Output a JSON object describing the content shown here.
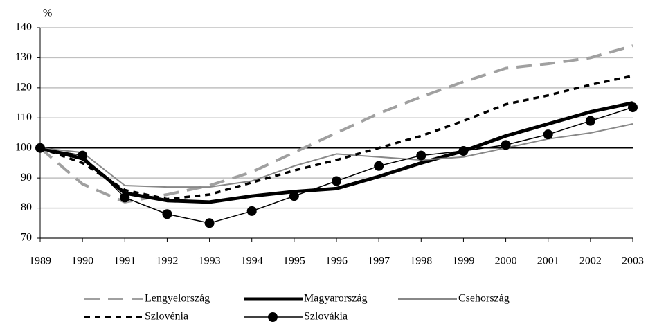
{
  "chart_data": {
    "type": "line",
    "y_label": "%",
    "categories": [
      "1989",
      "1990",
      "1991",
      "1992",
      "1993",
      "1994",
      "1995",
      "1996",
      "1997",
      "1998",
      "1999",
      "2000",
      "2001",
      "2002",
      "2003"
    ],
    "ylim": [
      70,
      140
    ],
    "yticks": [
      70,
      80,
      90,
      100,
      110,
      120,
      130,
      140
    ],
    "grid": true,
    "reference_line": 100,
    "series": [
      {
        "name": "Lengyelország",
        "color": "#a0a0a0",
        "width": 4,
        "dash": "22 12",
        "marker": false,
        "values": [
          100,
          88,
          82,
          84.5,
          87.5,
          92,
          98.5,
          105,
          111.5,
          117,
          122,
          126.5,
          128,
          130,
          134
        ]
      },
      {
        "name": "Magyarország",
        "color": "#000000",
        "width": 5,
        "dash": "",
        "marker": false,
        "values": [
          100,
          96.5,
          85,
          82.5,
          82,
          84,
          85.5,
          86.5,
          90.5,
          95,
          99,
          104,
          108,
          112,
          115
        ]
      },
      {
        "name": "Csehország",
        "color": "#888888",
        "width": 2,
        "dash": "",
        "marker": false,
        "values": [
          100,
          98.5,
          87.5,
          87,
          87,
          89,
          94,
          98,
          97,
          96,
          97,
          100,
          103,
          105,
          108
        ]
      },
      {
        "name": "Szlovénia",
        "color": "#000000",
        "width": 3.5,
        "dash": "8 7",
        "marker": false,
        "values": [
          100,
          95,
          86,
          83,
          84.5,
          88.5,
          92.5,
          96,
          100,
          104,
          109,
          114.5,
          117.5,
          121,
          124
        ]
      },
      {
        "name": "Szlovákia",
        "color": "#000000",
        "width": 1.5,
        "dash": "",
        "marker": true,
        "values": [
          100,
          97.5,
          83.5,
          78,
          75,
          79,
          84,
          89,
          94,
          97.5,
          99,
          101,
          104.5,
          109,
          113.5
        ]
      }
    ]
  }
}
